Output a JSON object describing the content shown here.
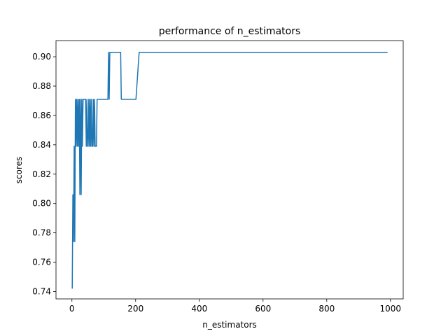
{
  "chart_data": {
    "type": "line",
    "title": "performance of n_estimators",
    "xlabel": "n_estimators",
    "ylabel": "scores",
    "xlim": [
      -50,
      1040
    ],
    "ylim": [
      0.735,
      0.911
    ],
    "xticks": [
      0,
      200,
      400,
      600,
      800,
      1000
    ],
    "xtick_labels": [
      "0",
      "200",
      "400",
      "600",
      "800",
      "1000"
    ],
    "yticks": [
      0.74,
      0.76,
      0.78,
      0.8,
      0.82,
      0.84,
      0.86,
      0.88,
      0.9
    ],
    "ytick_labels": [
      "0.74",
      "0.76",
      "0.78",
      "0.80",
      "0.82",
      "0.84",
      "0.86",
      "0.88",
      "0.90"
    ],
    "grid": false,
    "line_color": "#1f77b4",
    "series": [
      {
        "x": [
          1,
          3,
          5,
          7,
          9,
          11,
          13,
          15,
          17,
          19,
          21,
          23,
          25,
          27,
          29,
          31,
          33,
          35,
          37,
          39,
          41,
          43,
          45,
          47,
          49,
          51,
          53,
          55,
          57,
          59,
          61,
          63,
          65,
          67,
          69,
          71,
          73,
          75,
          77,
          79,
          81,
          91,
          101,
          111,
          113,
          115,
          117,
          119,
          121,
          131,
          141,
          151,
          153,
          155,
          161,
          171,
          181,
          191,
          201,
          211,
          221,
          301,
          401,
          501,
          601,
          701,
          801,
          901,
          991
        ],
        "y": [
          0.742,
          0.806,
          0.774,
          0.839,
          0.774,
          0.871,
          0.839,
          0.871,
          0.839,
          0.871,
          0.839,
          0.871,
          0.806,
          0.871,
          0.806,
          0.871,
          0.839,
          0.871,
          0.871,
          0.871,
          0.871,
          0.871,
          0.839,
          0.871,
          0.839,
          0.839,
          0.871,
          0.839,
          0.871,
          0.839,
          0.871,
          0.839,
          0.839,
          0.871,
          0.839,
          0.871,
          0.839,
          0.839,
          0.839,
          0.871,
          0.871,
          0.871,
          0.871,
          0.871,
          0.871,
          0.903,
          0.871,
          0.903,
          0.903,
          0.903,
          0.903,
          0.903,
          0.903,
          0.871,
          0.871,
          0.871,
          0.871,
          0.871,
          0.871,
          0.903,
          0.903,
          0.903,
          0.903,
          0.903,
          0.903,
          0.903,
          0.903,
          0.903,
          0.903
        ]
      }
    ]
  }
}
